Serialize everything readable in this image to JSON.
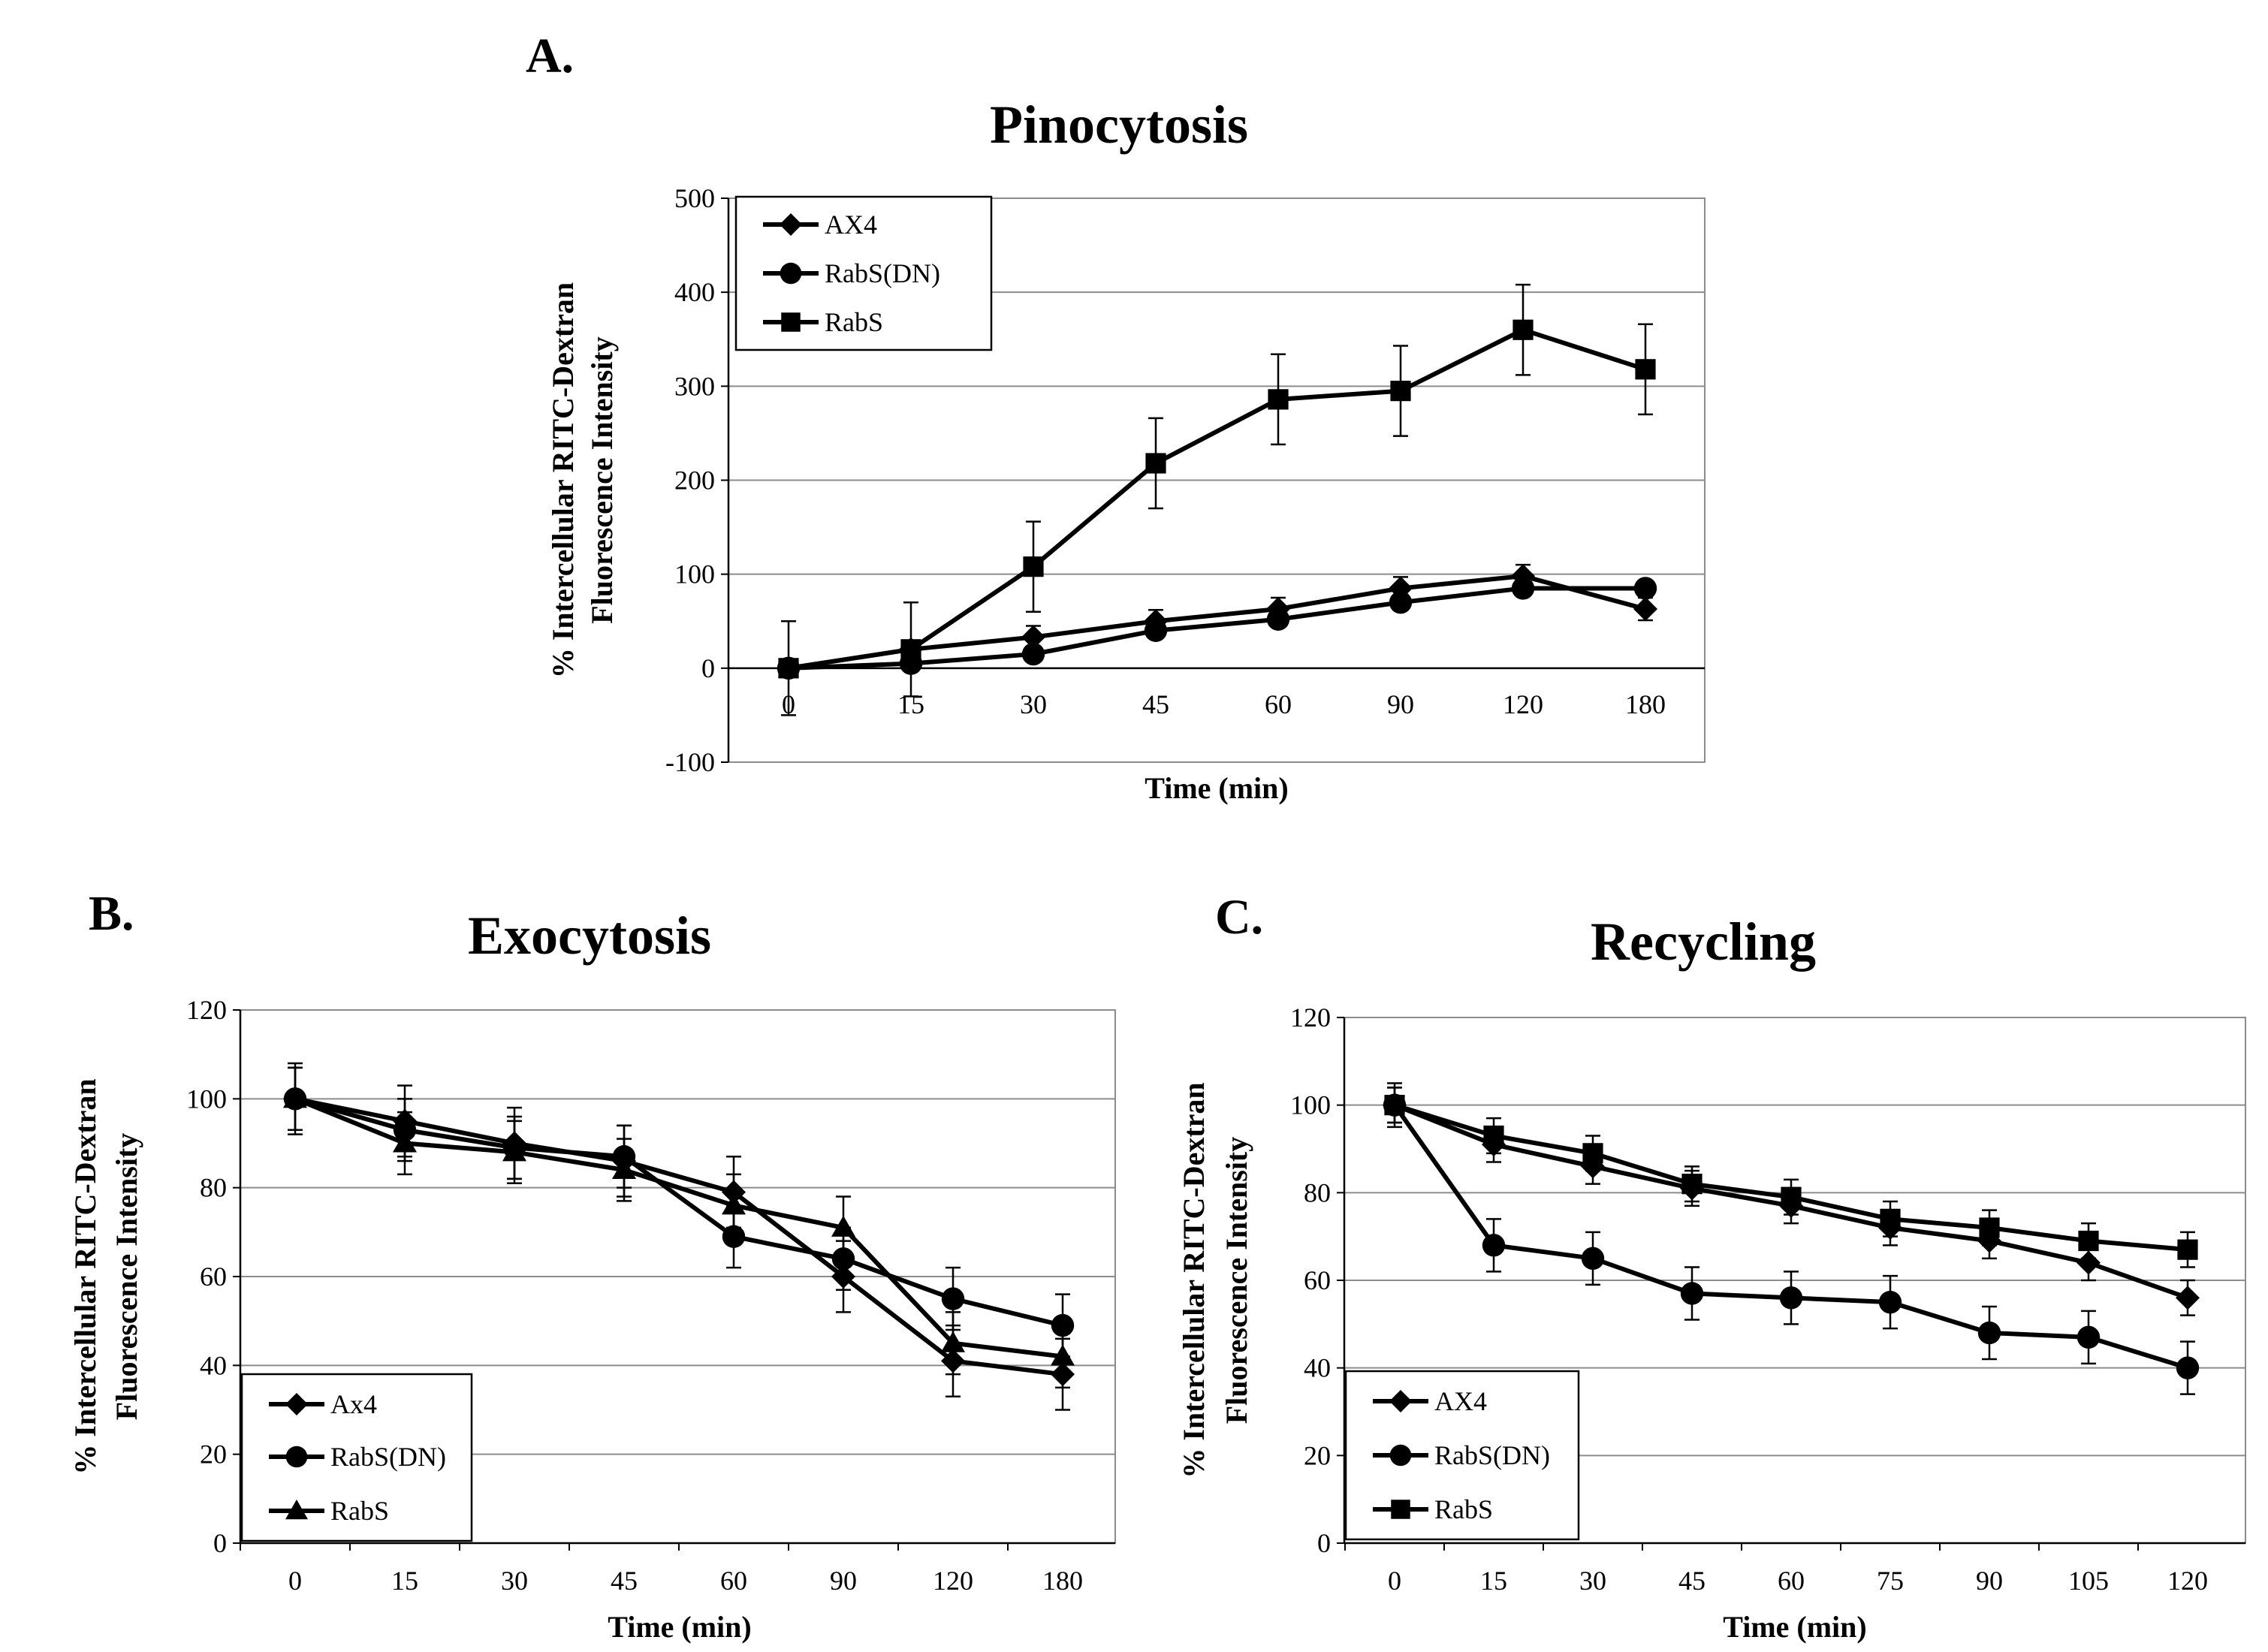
{
  "figure": {
    "colors": {
      "ink": "#000000",
      "grid": "#8c8c8c",
      "background": "#ffffff"
    }
  },
  "chart_data": [
    {
      "id": "pinocytosis",
      "panel_label": "A.",
      "type": "line",
      "title": "Pinocytosis",
      "xlabel": "Time (min)",
      "ylabel_line1": "% Intercellular RITC-Dextran",
      "ylabel_line2": "Fluorescence Intensity",
      "categories": [
        "0",
        "15",
        "30",
        "45",
        "60",
        "90",
        "120",
        "180"
      ],
      "ylim": [
        -100,
        500
      ],
      "yticks": [
        -100,
        0,
        100,
        200,
        300,
        400,
        500
      ],
      "grid": true,
      "legend_position": "top-left",
      "series": [
        {
          "name": "AX4",
          "marker": "diamond",
          "values": [
            0,
            20,
            33,
            50,
            63,
            85,
            98,
            63
          ],
          "errors": [
            0,
            0,
            12,
            12,
            12,
            12,
            12,
            12
          ]
        },
        {
          "name": "RabS(DN)",
          "marker": "circle",
          "values": [
            0,
            5,
            15,
            40,
            52,
            70,
            85,
            85
          ],
          "errors": [
            0,
            0,
            0,
            0,
            0,
            0,
            0,
            0
          ]
        },
        {
          "name": "RabS",
          "marker": "square",
          "values": [
            0,
            20,
            108,
            218,
            286,
            295,
            360,
            318
          ],
          "errors": [
            50,
            50,
            48,
            48,
            48,
            48,
            48,
            48
          ]
        }
      ]
    },
    {
      "id": "exocytosis",
      "panel_label": "B.",
      "type": "line",
      "title": "Exocytosis",
      "xlabel": "Time (min)",
      "ylabel_line1": "% Intercellular RITC-Dextran",
      "ylabel_line2": "Fluorescence Intensity",
      "categories": [
        "0",
        "15",
        "30",
        "45",
        "60",
        "90",
        "120",
        "180"
      ],
      "ylim": [
        0,
        120
      ],
      "yticks": [
        0,
        20,
        40,
        60,
        80,
        100,
        120
      ],
      "grid": true,
      "legend_position": "bottom-left",
      "series": [
        {
          "name": "Ax4",
          "marker": "diamond",
          "values": [
            100,
            95,
            90,
            86,
            79,
            60,
            41,
            38
          ],
          "errors": [
            8,
            8,
            8,
            8,
            8,
            8,
            8,
            8
          ]
        },
        {
          "name": "RabS(DN)",
          "marker": "circle",
          "values": [
            100,
            93,
            89,
            87,
            69,
            64,
            55,
            49
          ],
          "errors": [
            7,
            7,
            7,
            7,
            7,
            7,
            7,
            7
          ]
        },
        {
          "name": "RabS",
          "marker": "triangle",
          "values": [
            100,
            90,
            88,
            84,
            76,
            71,
            45,
            42
          ],
          "errors": [
            7,
            7,
            7,
            7,
            7,
            7,
            7,
            7
          ]
        }
      ]
    },
    {
      "id": "recycling",
      "panel_label": "C.",
      "type": "line",
      "title": "Recycling",
      "xlabel": "Time (min)",
      "ylabel_line1": "% Intercellular RITC-Dextran",
      "ylabel_line2": "Fluorescence Intensity",
      "categories": [
        "0",
        "15",
        "30",
        "45",
        "60",
        "75",
        "90",
        "105",
        "120"
      ],
      "ylim": [
        0,
        120
      ],
      "yticks": [
        0,
        20,
        40,
        60,
        80,
        100,
        120
      ],
      "grid": true,
      "legend_position": "bottom-left",
      "series": [
        {
          "name": "AX4",
          "marker": "diamond",
          "values": [
            100,
            91,
            86,
            81,
            77,
            72,
            69,
            64,
            56
          ],
          "errors": [
            4,
            4,
            4,
            4,
            4,
            4,
            4,
            4,
            4
          ]
        },
        {
          "name": "RabS(DN)",
          "marker": "circle",
          "values": [
            100,
            68,
            65,
            57,
            56,
            55,
            48,
            47,
            40
          ],
          "errors": [
            5,
            6,
            6,
            6,
            6,
            6,
            6,
            6,
            6
          ]
        },
        {
          "name": "RabS",
          "marker": "square",
          "values": [
            100,
            93,
            89,
            82,
            79,
            74,
            72,
            69,
            67
          ],
          "errors": [
            4,
            4,
            4,
            4,
            4,
            4,
            4,
            4,
            4
          ]
        }
      ]
    }
  ]
}
